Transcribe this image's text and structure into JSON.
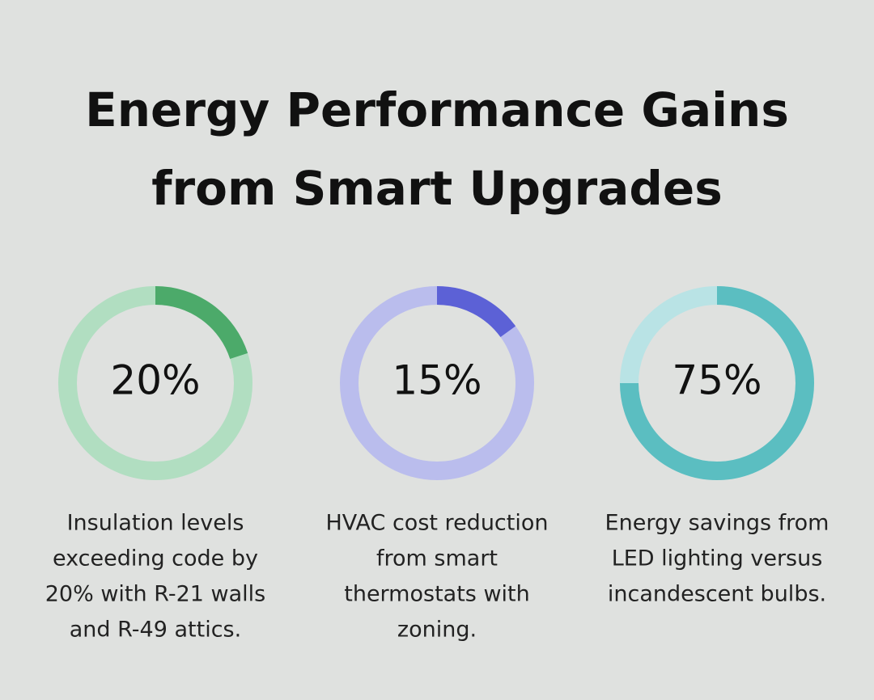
{
  "title": [
    "Energy Performance Gains",
    "from Smart Upgrades"
  ],
  "chart_data": [
    {
      "type": "donut",
      "values": [
        20
      ],
      "value_labels": [
        "20%"
      ],
      "color": "#4caa6a",
      "track_color": "#b1dec1",
      "caption": [
        "Insulation levels",
        "exceeding code by",
        "20% with R-21 walls",
        "and R-49 attics."
      ]
    },
    {
      "type": "donut",
      "values": [
        15
      ],
      "value_labels": [
        "15%"
      ],
      "color": "#5c61d6",
      "track_color": "#babded",
      "caption": [
        "HVAC cost reduction",
        "from smart",
        "thermostats with",
        "zoning."
      ]
    },
    {
      "type": "donut",
      "values": [
        75
      ],
      "value_labels": [
        "75%"
      ],
      "color": "#5bbec1",
      "track_color": "#b9e3e5",
      "caption": [
        "Energy savings from",
        "LED lighting versus",
        "incandescent bulbs."
      ]
    }
  ]
}
